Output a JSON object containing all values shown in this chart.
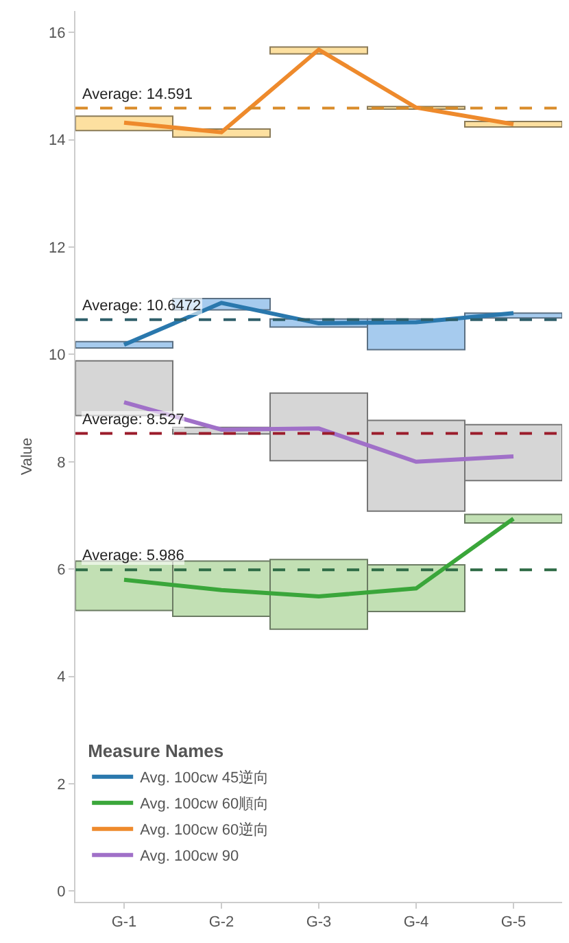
{
  "chart_data": {
    "type": "line",
    "ylabel": "Value",
    "legend_title": "Measure Names",
    "legend": "bottom left",
    "grid": false,
    "marker": "none",
    "line_style": "solid",
    "categories": [
      "G-1",
      "G-2",
      "G-3",
      "G-4",
      "G-5"
    ],
    "ylim": [
      -0.2,
      16.4
    ],
    "yticks": [
      0,
      2,
      4,
      6,
      8,
      10,
      12,
      14,
      16
    ],
    "series": [
      {
        "type": "bar",
        "color": "#a6cbee",
        "base": [
          10.12,
          10.83,
          10.51,
          10.09,
          10.68
        ],
        "values": [
          0.12,
          0.21,
          0.15,
          0.57,
          0.09
        ]
      },
      {
        "type": "bar",
        "color": "#c2e0b4",
        "base": [
          5.23,
          5.12,
          4.88,
          5.21,
          6.86
        ],
        "values": [
          0.92,
          1.03,
          1.3,
          0.87,
          0.16
        ]
      },
      {
        "type": "bar",
        "color": "#fde0a0",
        "base": [
          14.17,
          14.05,
          15.6,
          14.57,
          14.24
        ],
        "values": [
          0.27,
          0.15,
          0.13,
          0.05,
          0.1
        ]
      },
      {
        "type": "bar",
        "color": "#d6d6d6",
        "base": [
          8.86,
          8.52,
          8.02,
          7.08,
          7.65
        ],
        "values": [
          1.02,
          0.12,
          1.26,
          1.69,
          1.04
        ]
      },
      {
        "name": "Avg. 100cw 45逆向",
        "color": "#2a78ad",
        "values": [
          10.18,
          10.96,
          10.58,
          10.6,
          10.77
        ]
      },
      {
        "name": "Avg. 100cw 60順向",
        "color": "#3aa63a",
        "values": [
          5.8,
          5.61,
          5.49,
          5.64,
          6.94
        ]
      },
      {
        "name": "Avg. 100cw 60逆向",
        "color": "#ee8a2c",
        "values": [
          14.32,
          14.14,
          15.68,
          14.6,
          14.29
        ]
      },
      {
        "name": "Avg. 100cw 90",
        "color": "#a070c8",
        "values": [
          9.11,
          8.6,
          8.62,
          8.0,
          8.1
        ]
      }
    ],
    "ref_lines": [
      {
        "axis": "y",
        "value": 14.591,
        "label": "Average: 14.591",
        "color": "#d98c2a",
        "line_style": "dashed"
      },
      {
        "axis": "y",
        "value": 10.6472,
        "label": "Average: 10.6472",
        "color": "#2f5f6a",
        "line_style": "dashed"
      },
      {
        "axis": "y",
        "value": 8.527,
        "label": "Average: 8.527",
        "color": "#9b1c2b",
        "line_style": "dashed"
      },
      {
        "axis": "y",
        "value": 5.986,
        "label": "Average: 5.986",
        "color": "#2e6b45",
        "line_style": "dashed"
      }
    ]
  }
}
